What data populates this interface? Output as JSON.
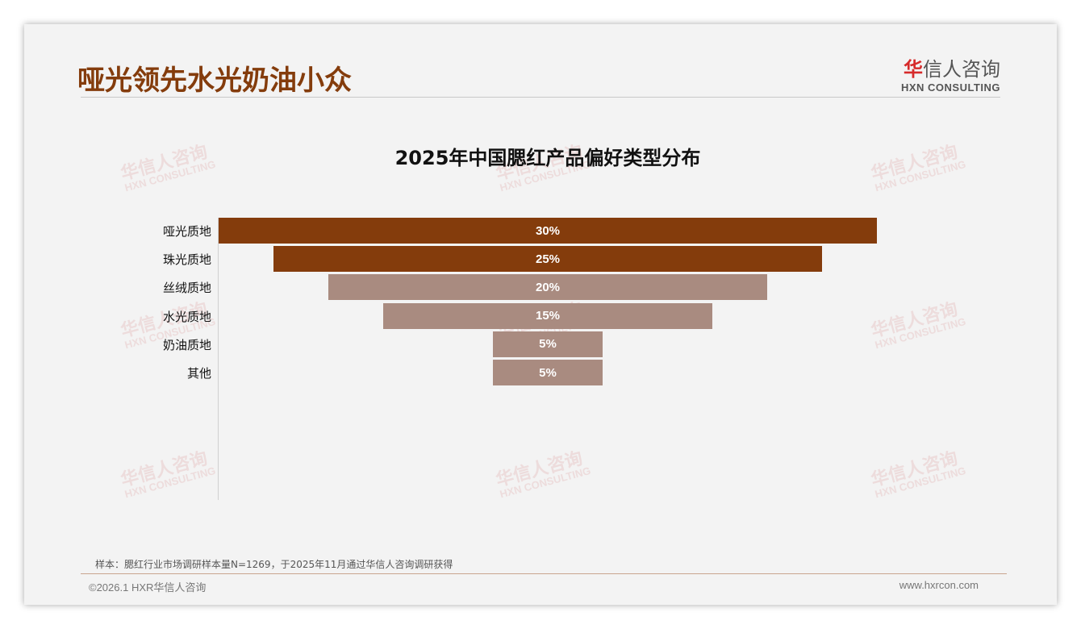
{
  "header": {
    "title": "哑光领先水光奶油小众",
    "logo_cn_mark": "华",
    "logo_cn_rest": "信人咨询",
    "logo_en": "HXN CONSULTING"
  },
  "watermark": {
    "cn": "华信人咨询",
    "en": "HXN CONSULTING"
  },
  "chart_data": {
    "type": "bar",
    "orientation": "horizontal-funnel",
    "title": "2025年中国腮红产品偏好类型分布",
    "categories": [
      "哑光质地",
      "珠光质地",
      "丝绒质地",
      "水光质地",
      "奶油质地",
      "其他"
    ],
    "values": [
      30,
      25,
      20,
      15,
      5,
      5
    ],
    "labels": [
      "30%",
      "25%",
      "20%",
      "15%",
      "5%",
      "5%"
    ],
    "colors": [
      "#843c0c",
      "#843c0c",
      "#a98b80",
      "#a98b80",
      "#a98b80",
      "#a98b80"
    ],
    "xlim": [
      0,
      30
    ]
  },
  "footer": {
    "note": "样本：腮红行业市场调研样本量N=1269，于2025年11月通过华信人咨询调研获得",
    "copyright": "©2026.1 HXR华信人咨询",
    "url": "www.hxrcon.com"
  }
}
